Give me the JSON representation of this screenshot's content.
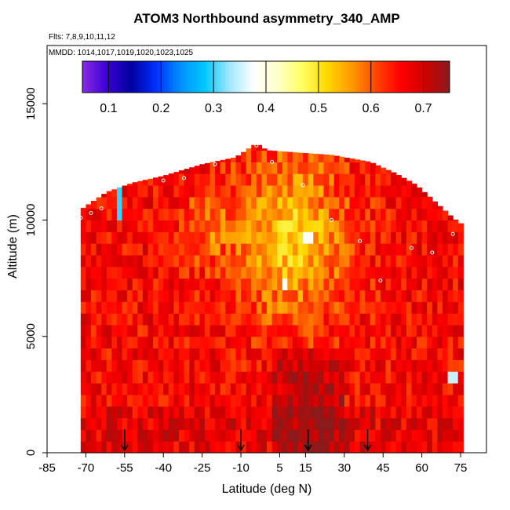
{
  "chart_data": {
    "type": "heatmap",
    "title": "ATOM3 Northbound asymmetry_340_AMP",
    "flights": "Flts: 7,8,9,10,11,12",
    "mmdd": "MMDD: 1014,1017,1019,1020,1023,1025",
    "xlabel": "Latitude (deg N)",
    "ylabel": "Altitude (m)",
    "xlim": [
      -85,
      85
    ],
    "ylim": [
      0,
      17500
    ],
    "xticks": [
      -85,
      -70,
      -55,
      -40,
      -25,
      -10,
      5,
      15,
      30,
      45,
      60,
      75
    ],
    "xtick_labels": [
      "-85",
      "-70",
      "-55",
      "-40",
      "-25",
      "-10",
      "5",
      "15",
      "30",
      "45",
      "60",
      "75"
    ],
    "yticks": [
      0,
      5000,
      10000,
      15000
    ],
    "ytick_labels": [
      "0",
      "5000",
      "10000",
      "15000"
    ],
    "colorbar": {
      "range": [
        0.05,
        0.75
      ],
      "ticks": [
        0.1,
        0.2,
        0.3,
        0.4,
        0.5,
        0.6,
        0.7
      ],
      "tick_labels": [
        "0.1",
        "0.2",
        "0.3",
        "0.4",
        "0.5",
        "0.6",
        "0.7"
      ],
      "colors": [
        "#8a2be2",
        "#3a00d6",
        "#0000a0",
        "#0030ff",
        "#0090ff",
        "#00c8ff",
        "#a0e8ff",
        "#ffffff",
        "#ffffc8",
        "#ffff60",
        "#ffd700",
        "#ff9a00",
        "#ff4500",
        "#ff0000",
        "#d00000",
        "#8b1a1a"
      ]
    },
    "envelope": [
      {
        "lat": -74,
        "top": 10300
      },
      {
        "lat": -62,
        "top": 11200
      },
      {
        "lat": -52,
        "top": 11600
      },
      {
        "lat": -40,
        "top": 11900
      },
      {
        "lat": -25,
        "top": 12400
      },
      {
        "lat": -12,
        "top": 12700
      },
      {
        "lat": -4,
        "top": 13300
      },
      {
        "lat": 0,
        "top": 13000
      },
      {
        "lat": 12,
        "top": 12900
      },
      {
        "lat": 25,
        "top": 12800
      },
      {
        "lat": 40,
        "top": 12500
      },
      {
        "lat": 50,
        "top": 12000
      },
      {
        "lat": 58,
        "top": 11500
      },
      {
        "lat": 66,
        "top": 10700
      },
      {
        "lat": 72,
        "top": 10100
      },
      {
        "lat": 77,
        "top": 9700
      }
    ],
    "lat_bottom_left": -72,
    "lat_bottom_right": 76,
    "alt_bin_m": 500,
    "lat_bin_deg": 2,
    "features": [
      {
        "lat_min": -58,
        "lat_max": -56,
        "alt_min": 10000,
        "alt_max": 11500,
        "value": 0.3
      },
      {
        "lat_min": 70,
        "lat_max": 74,
        "alt_min": 3000,
        "alt_max": 3500,
        "value": 0.35
      },
      {
        "lat_min": 6,
        "lat_max": 8,
        "alt_min": 7000,
        "alt_max": 7500,
        "value": 0.38
      },
      {
        "lat_min": 14,
        "lat_max": 18,
        "alt_min": 9000,
        "alt_max": 9500,
        "value": 0.38
      }
    ],
    "sondes_lat": [
      -55,
      -10,
      16,
      39
    ],
    "track_points": [
      {
        "lat": -72,
        "alt": 10100
      },
      {
        "lat": -68,
        "alt": 10300
      },
      {
        "lat": -64,
        "alt": 10500
      },
      {
        "lat": -56,
        "alt": 11600
      },
      {
        "lat": -48,
        "alt": 11900
      },
      {
        "lat": -40,
        "alt": 11700
      },
      {
        "lat": -32,
        "alt": 11800
      },
      {
        "lat": -20,
        "alt": 12400
      },
      {
        "lat": -4,
        "alt": 13200
      },
      {
        "lat": 2,
        "alt": 12500
      },
      {
        "lat": 14,
        "alt": 11500
      },
      {
        "lat": 25,
        "alt": 10000
      },
      {
        "lat": 36,
        "alt": 9100
      },
      {
        "lat": 44,
        "alt": 7400
      },
      {
        "lat": 56,
        "alt": 8800
      },
      {
        "lat": 64,
        "alt": 8600
      },
      {
        "lat": 72,
        "alt": 9400
      },
      {
        "lat": 78,
        "alt": 9100
      }
    ]
  }
}
